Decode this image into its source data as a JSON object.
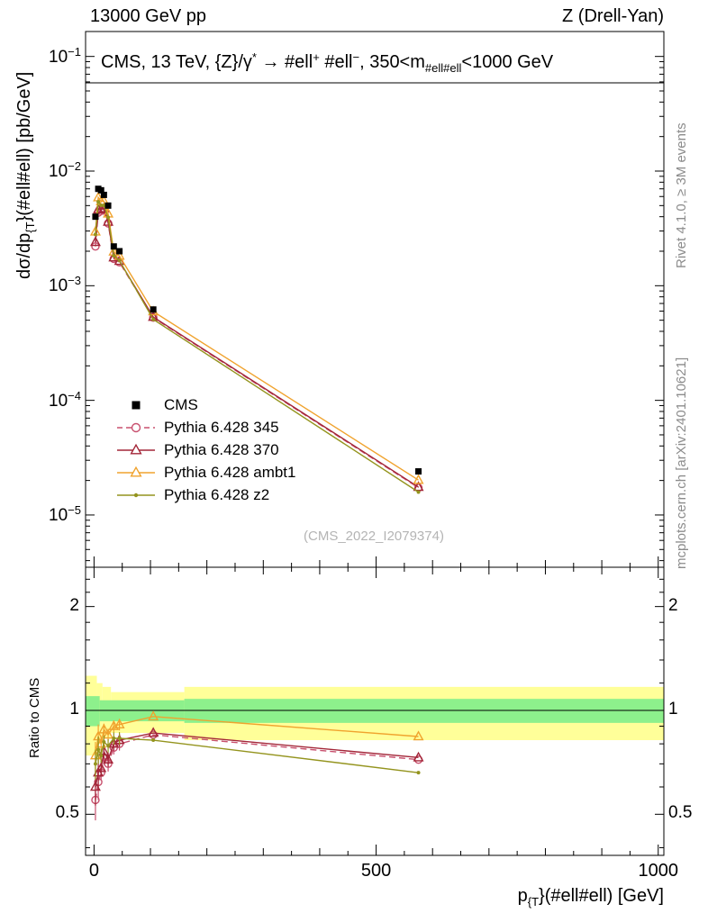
{
  "header": {
    "left": "13000 GeV pp",
    "right": "Z (Drell-Yan)"
  },
  "panel_title": {
    "part1": "CMS, 13 TeV, {Z}/γ",
    "sup1": "*",
    "part2": " → #ell",
    "sup2": "+",
    "part3": " #ell",
    "sup3": "−",
    "part4": ", 350<m",
    "sub1": "#ell#ell",
    "part5": "<1000 GeV"
  },
  "side_notes": {
    "top": "Rivet 4.1.0, ≥ 3M events",
    "bottom": "mcplots.cern.ch [arXiv:2401.10621]"
  },
  "watermark": "(CMS_2022_I2079374)",
  "axis_labels": {
    "y_main_prefix": "dσ/dp",
    "y_main_sub": "{T",
    "y_main_suffix": "}(#ell#ell) [pb/GeV]",
    "y_ratio": "Ratio to CMS",
    "x_prefix": "p",
    "x_sub": "{T",
    "x_suffix": "}(#ell#ell) [GeV]"
  },
  "chart_data": {
    "type": "line",
    "title": "CMS, 13 TeV, {Z}/γ* → ell+ ell−, 350<m(ellell)<1000 GeV",
    "xlabel": "pT(ellell) [GeV]",
    "ylabel_main": "dσ/dpT(ellell) [pb/GeV]",
    "ylabel_ratio": "Ratio to CMS",
    "x_log": false,
    "x_range": [
      -15,
      1010
    ],
    "x_ticks_major": [
      0,
      500,
      1000
    ],
    "x_tick_minor_step": 50,
    "x_values": [
      2.5,
      7.5,
      12.5,
      17.5,
      25,
      35,
      45,
      105,
      575
    ],
    "main_panel": {
      "y_log": true,
      "y_range": [
        3.5e-06,
        0.165
      ],
      "y_tick_exponents": [
        -1,
        -2,
        -3,
        -4,
        -5
      ],
      "cms_values": [
        0.004,
        0.007,
        0.0068,
        0.0062,
        0.005,
        0.0022,
        0.002,
        0.00062,
        2.4e-05
      ]
    },
    "ratio_panel": {
      "y_log": true,
      "y_range": [
        0.38,
        2.6
      ],
      "y_ticks": [
        {
          "value": 2,
          "label": "2"
        },
        {
          "value": 1,
          "label": "1"
        },
        {
          "value": 0.5,
          "label": "0.5"
        }
      ],
      "y_minor_ticks": [
        0.4,
        0.6,
        0.7,
        0.8,
        0.9,
        1.2,
        1.4,
        1.6,
        1.8,
        2.2,
        2.4
      ],
      "reference": 1,
      "bands": {
        "yellow_color": "#ffff99",
        "green_color": "#8df08c",
        "yellow": [
          {
            "x0": -15,
            "x1": 5,
            "lo": 0.74,
            "hi": 1.26
          },
          {
            "x0": 5,
            "x1": 15,
            "lo": 0.8,
            "hi": 1.2
          },
          {
            "x0": 15,
            "x1": 30,
            "lo": 0.83,
            "hi": 1.17
          },
          {
            "x0": 30,
            "x1": 160,
            "lo": 0.86,
            "hi": 1.13
          },
          {
            "x0": 160,
            "x1": 1010,
            "lo": 0.82,
            "hi": 1.17
          }
        ],
        "green": [
          {
            "x0": -15,
            "x1": 10,
            "lo": 0.9,
            "hi": 1.1
          },
          {
            "x0": 10,
            "x1": 160,
            "lo": 0.93,
            "hi": 1.07
          },
          {
            "x0": 160,
            "x1": 1010,
            "lo": 0.92,
            "hi": 1.08
          }
        ]
      }
    },
    "series": [
      {
        "name": "CMS",
        "color": "#000000",
        "marker": "square-filled",
        "line": "none",
        "role": "reference-data"
      },
      {
        "name": "Pythia 6.428 345",
        "color": "#c8506e",
        "marker": "circle-open",
        "line": "dashed",
        "ratio_to_cms": [
          0.55,
          0.62,
          0.66,
          0.73,
          0.7,
          0.78,
          0.8,
          0.85,
          0.72
        ]
      },
      {
        "name": "Pythia 6.428 370",
        "color": "#a32638",
        "marker": "triangle-open",
        "line": "solid",
        "ratio_to_cms": [
          0.6,
          0.66,
          0.68,
          0.76,
          0.72,
          0.8,
          0.82,
          0.86,
          0.73
        ]
      },
      {
        "name": "Pythia 6.428 ambt1",
        "color": "#f0a32e",
        "marker": "triangle-open",
        "line": "solid",
        "ratio_to_cms": [
          0.74,
          0.84,
          0.8,
          0.88,
          0.85,
          0.9,
          0.91,
          0.96,
          0.84
        ]
      },
      {
        "name": "Pythia 6.428 z2",
        "color": "#94941e",
        "marker": "dot-filled",
        "line": "solid",
        "ratio_to_cms": [
          0.7,
          0.77,
          0.74,
          0.81,
          0.79,
          0.83,
          0.83,
          0.82,
          0.66
        ]
      }
    ]
  }
}
